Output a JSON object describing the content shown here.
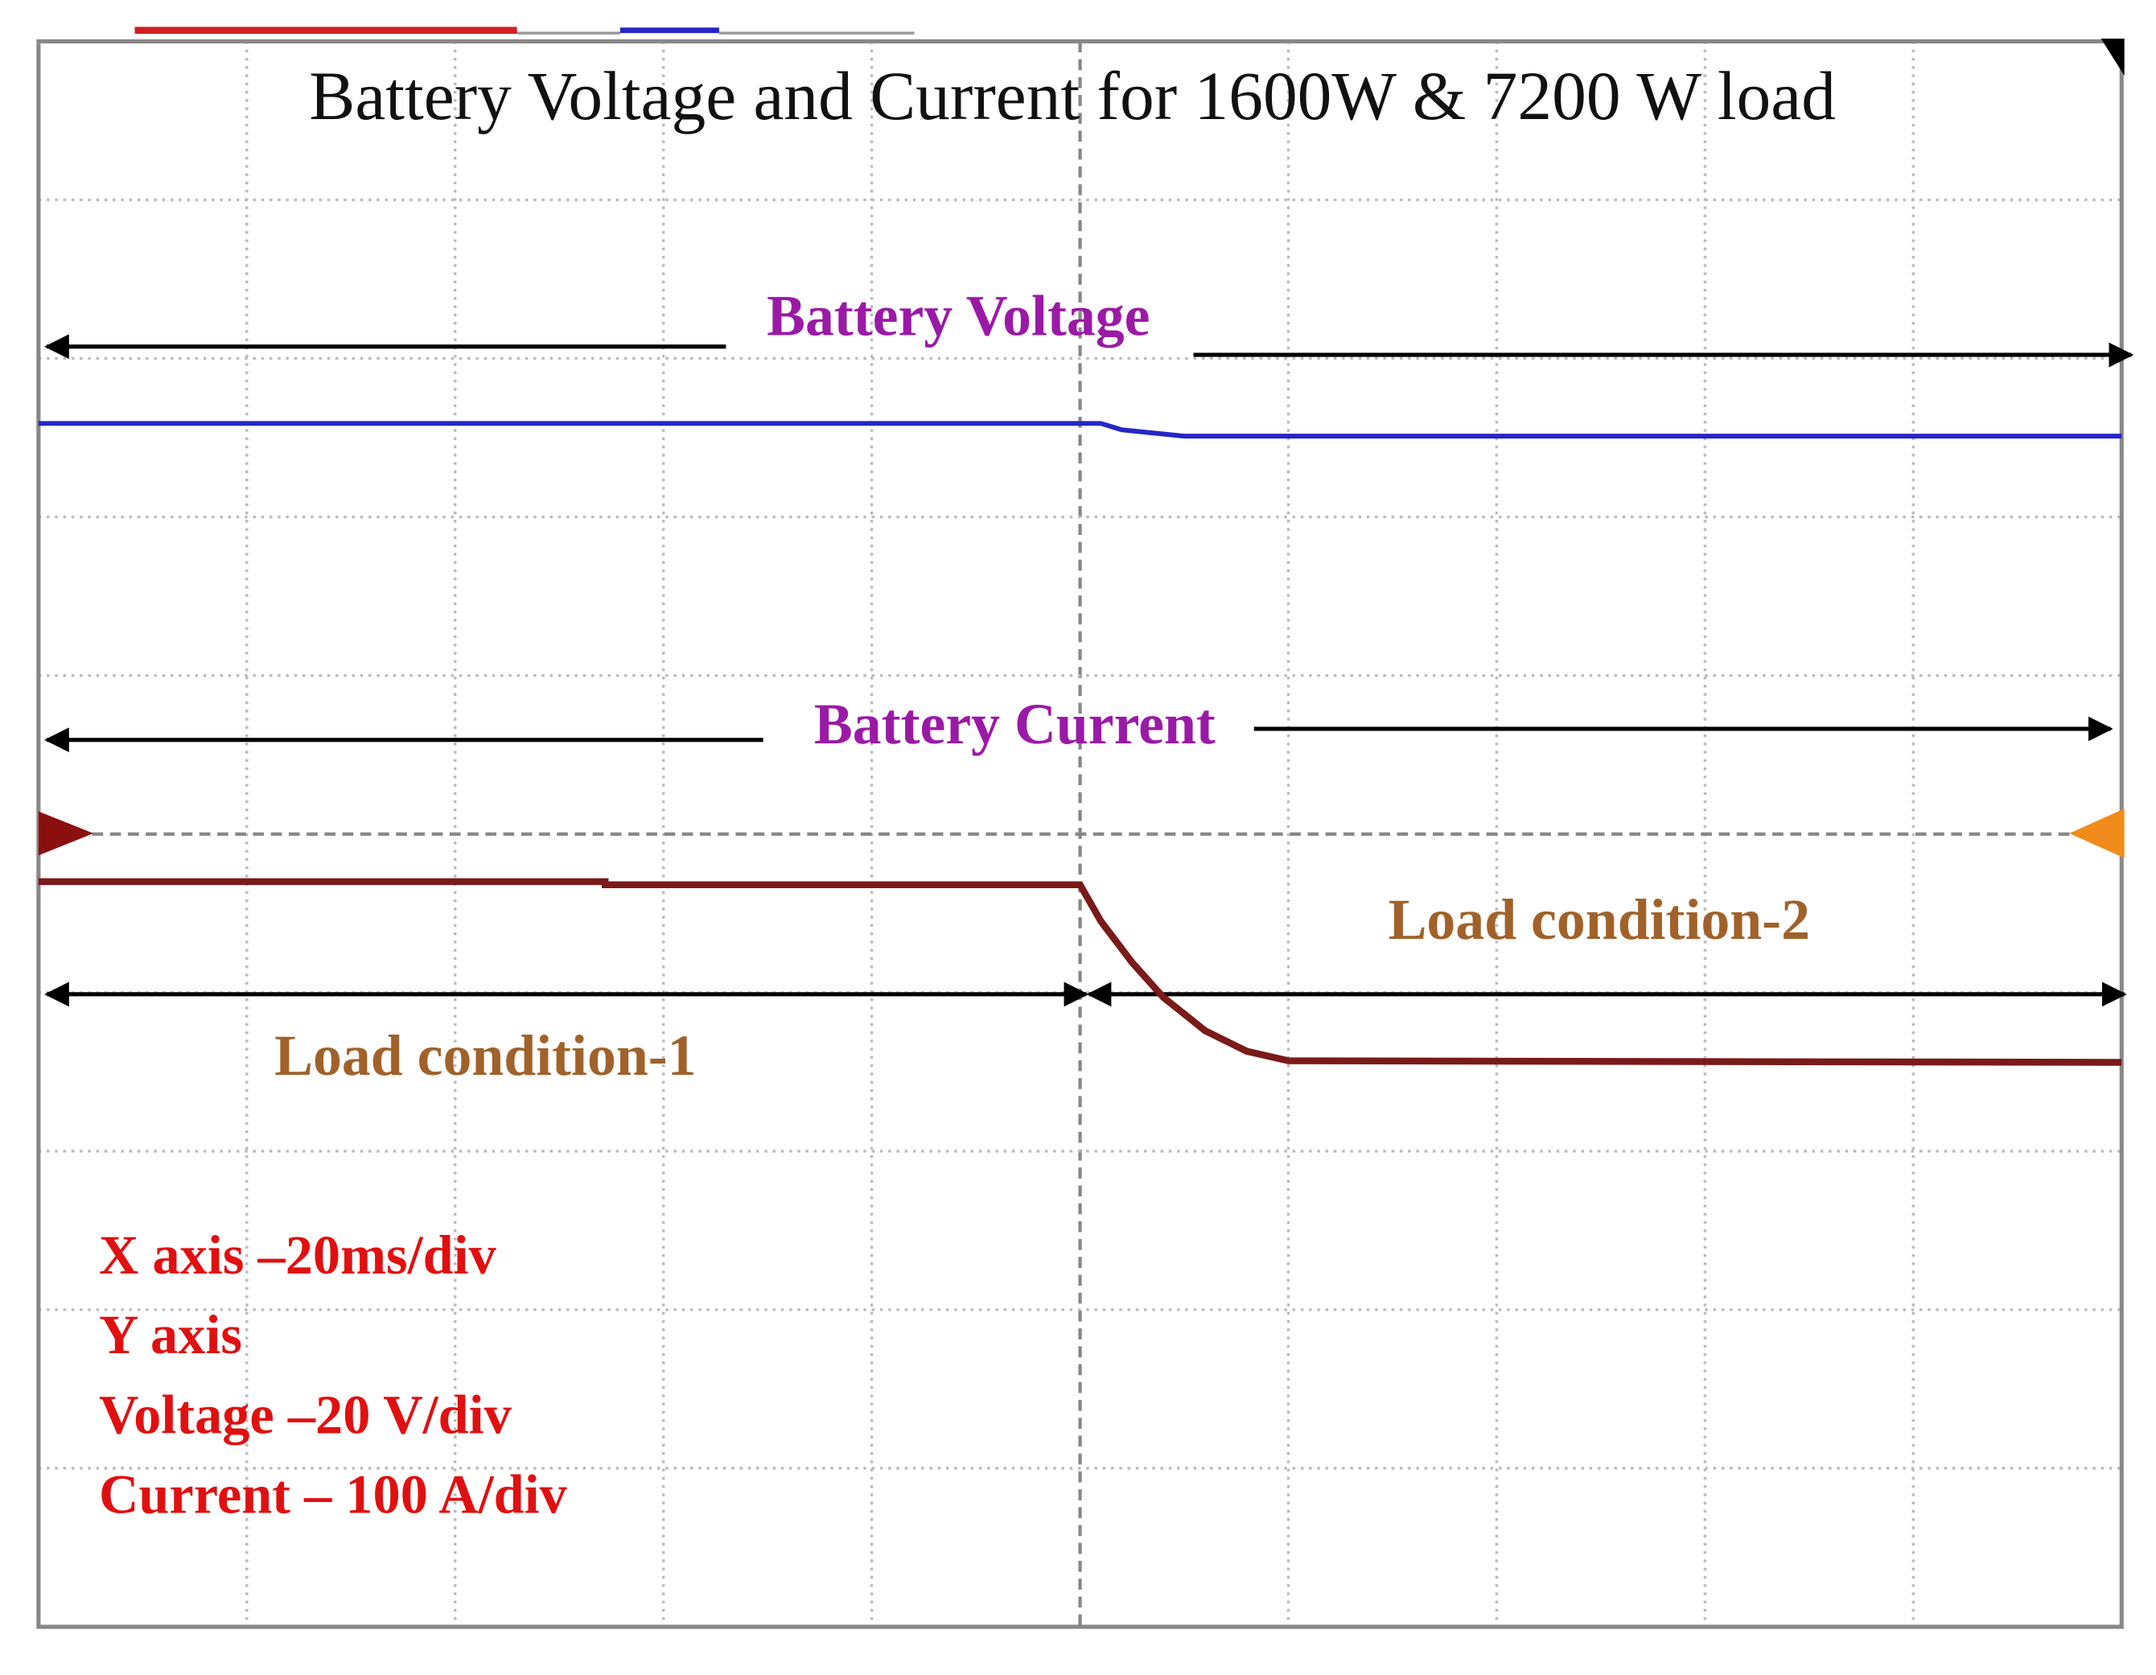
{
  "chart_data": {
    "type": "line",
    "title": "Battery Voltage and Current for 1600W & 7200 W load",
    "xlim": [
      0,
      10
    ],
    "ylim": [
      0,
      10
    ],
    "xticks": [
      0,
      1,
      2,
      3,
      4,
      5,
      6,
      7,
      8,
      9,
      10
    ],
    "yticks": [
      0,
      1,
      2,
      3,
      4,
      5,
      6,
      7,
      8,
      9,
      10
    ],
    "grid": true,
    "series": [
      {
        "name": "Battery Voltage",
        "color": "#2626c8",
        "x": [
          0,
          5.1,
          5.2,
          5.5,
          10
        ],
        "values": [
          7.59,
          7.59,
          7.55,
          7.51,
          7.51
        ]
      },
      {
        "name": "Battery Current",
        "color": "#7a1a1a",
        "x": [
          0,
          2.72,
          2.72,
          5.0,
          5.1,
          5.25,
          5.4,
          5.6,
          5.8,
          6.0,
          10
        ],
        "values": [
          4.7,
          4.7,
          4.68,
          4.68,
          4.45,
          4.19,
          3.97,
          3.76,
          3.63,
          3.57,
          3.56
        ]
      }
    ],
    "annotations": [
      "Load condition-1",
      "Load condition-2"
    ],
    "notes": [
      "X axis –20ms/div",
      "Y axis",
      "Voltage –20 V/div",
      "Current – 100 A/div"
    ]
  }
}
